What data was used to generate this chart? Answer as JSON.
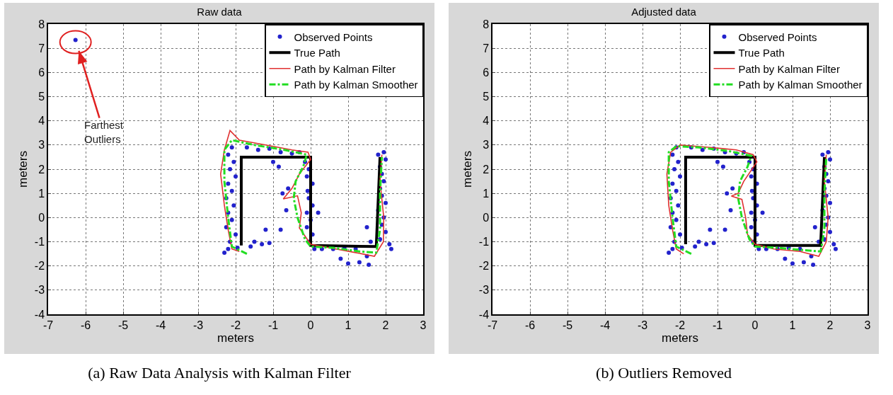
{
  "chart_data": [
    {
      "type": "scatter",
      "title": "Raw data",
      "xlabel": "meters",
      "ylabel": "meters",
      "xlim": [
        -7,
        3
      ],
      "ylim": [
        -4,
        8
      ],
      "xticks": [
        -7,
        -6,
        -5,
        -4,
        -3,
        -2,
        -1,
        0,
        1,
        2,
        3
      ],
      "yticks": [
        -4,
        -3,
        -2,
        -1,
        0,
        1,
        2,
        3,
        4,
        5,
        6,
        7,
        8
      ],
      "grid": true,
      "legend": "top right",
      "annotations": [
        {
          "text": "Farthest Outliers",
          "x": -6.27,
          "y": 7.34
        },
        "(a) Raw Data Analysis with Kalman Filter"
      ],
      "series": [
        {
          "name": "Observed Points",
          "type": "scatter",
          "marker": "circle",
          "color": "#2222cc",
          "x": [
            -6.27,
            -2.1,
            -2.2,
            -2.05,
            -2.15,
            -2.0,
            -2.2,
            -2.1,
            -2.25,
            -2.05,
            -2.2,
            -2.1,
            -2.25,
            -2.0,
            -2.15,
            -2.2,
            -1.95,
            -2.3,
            -1.7,
            -1.4,
            -1.1,
            -0.8,
            -0.5,
            -0.3,
            -1.0,
            -0.85,
            -0.6,
            -0.75,
            -0.65,
            -1.2,
            -1.5,
            -1.3,
            -1.6,
            -1.1,
            -0.8,
            -0.15,
            -0.05,
            -0.1,
            0.05,
            -0.08,
            -0.05,
            0.05,
            -0.1,
            0.0,
            -0.1,
            0.05,
            -0.05,
            0.1,
            0.3,
            0.2,
            0.6,
            0.9,
            1.2,
            0.8,
            1.0,
            1.3,
            1.5,
            1.55,
            1.8,
            1.95,
            2.0,
            1.85,
            1.9,
            1.95,
            1.85,
            1.9,
            2.0,
            1.8,
            1.95,
            1.9,
            2.0,
            1.85,
            1.5,
            2.1,
            2.15,
            1.6
          ],
          "values": [
            7.34,
            2.9,
            2.6,
            2.3,
            2.0,
            1.7,
            1.4,
            1.1,
            0.8,
            0.5,
            0.2,
            -0.1,
            -0.4,
            -0.7,
            -1.0,
            -1.3,
            -1.25,
            -1.45,
            2.9,
            2.8,
            2.85,
            2.7,
            2.65,
            2.7,
            2.3,
            2.1,
            1.2,
            1.0,
            0.3,
            -0.5,
            -1.0,
            -1.1,
            -1.2,
            -1.05,
            -0.5,
            2.3,
            2.0,
            1.7,
            1.4,
            1.1,
            0.8,
            0.5,
            0.2,
            -0.1,
            -0.4,
            -0.7,
            -1.0,
            -1.3,
            -1.3,
            0.2,
            -1.3,
            -1.25,
            -1.3,
            -1.7,
            -1.9,
            -1.85,
            -1.6,
            -1.95,
            2.6,
            2.7,
            2.4,
            2.1,
            1.8,
            1.5,
            1.2,
            0.9,
            0.6,
            0.3,
            0.0,
            -0.3,
            -0.6,
            -0.9,
            -0.4,
            -1.1,
            -1.3,
            -1.0
          ]
        },
        {
          "name": "True Path",
          "type": "line",
          "line_style": "solid",
          "color": "#000000",
          "x": [
            -1.85,
            -1.85,
            0,
            0,
            1.75,
            1.85
          ],
          "values": [
            -1.15,
            2.5,
            2.5,
            -1.15,
            -1.2,
            2.5
          ]
        },
        {
          "name": "Path by Kalman Filter",
          "type": "line",
          "line_style": "solid",
          "color": "#e03030",
          "x": [
            -1.9,
            -2.1,
            -2.2,
            -2.3,
            -2.4,
            -2.3,
            -2.15,
            -1.9,
            -1.2,
            -0.5,
            -0.07,
            0.0,
            -0.3,
            -0.5,
            -0.73,
            -0.35,
            -0.25,
            -0.3,
            0.0,
            0.5,
            1.2,
            1.7,
            1.94,
            1.95,
            1.85,
            1.9
          ],
          "values": [
            -1.4,
            -1.3,
            -0.5,
            0.5,
            1.8,
            2.8,
            3.6,
            3.2,
            3.0,
            2.8,
            2.7,
            2.4,
            1.8,
            1.2,
            0.77,
            0.9,
            0.2,
            -0.43,
            -1.1,
            -1.25,
            -1.45,
            -1.6,
            -1.0,
            0.0,
            1.5,
            2.6
          ]
        },
        {
          "name": "Path by Kalman Smoother",
          "type": "line",
          "line_style": "dashed",
          "color": "#22dd22",
          "x": [
            -1.7,
            -2.1,
            -2.2,
            -2.3,
            -2.3,
            -2.1,
            -1.5,
            -0.7,
            -0.1,
            -0.2,
            -0.4,
            -0.45,
            -0.35,
            -0.15,
            0.0,
            0.6,
            1.3,
            1.75,
            1.85,
            1.85,
            1.9
          ],
          "values": [
            -1.5,
            -1.2,
            0,
            1.5,
            2.8,
            3.2,
            3.0,
            2.8,
            2.6,
            2.1,
            1.5,
            0.8,
            0.0,
            -0.9,
            -1.2,
            -1.25,
            -1.4,
            -1.45,
            -0.5,
            1.0,
            2.5
          ]
        }
      ]
    },
    {
      "type": "scatter",
      "title": "Adjusted data",
      "xlabel": "meters",
      "ylabel": "meters",
      "xlim": [
        -7,
        3
      ],
      "ylim": [
        -4,
        8
      ],
      "xticks": [
        -7,
        -6,
        -5,
        -4,
        -3,
        -2,
        -1,
        0,
        1,
        2,
        3
      ],
      "yticks": [
        -4,
        -3,
        -2,
        -1,
        0,
        1,
        2,
        3,
        4,
        5,
        6,
        7,
        8
      ],
      "grid": true,
      "legend": "top right",
      "annotations": [
        "(b) Outliers Removed"
      ],
      "series": [
        {
          "name": "Observed Points",
          "type": "scatter",
          "marker": "circle",
          "color": "#2222cc",
          "x": [
            -2.1,
            -2.2,
            -2.05,
            -2.15,
            -2.0,
            -2.2,
            -2.1,
            -2.25,
            -2.05,
            -2.2,
            -2.1,
            -2.25,
            -2.0,
            -2.15,
            -2.2,
            -1.95,
            -2.3,
            -1.7,
            -1.4,
            -1.1,
            -0.8,
            -0.5,
            -0.3,
            -1.0,
            -0.85,
            -0.6,
            -0.75,
            -0.65,
            -1.2,
            -1.5,
            -1.3,
            -1.6,
            -1.1,
            -0.8,
            -0.15,
            -0.05,
            -0.1,
            0.05,
            -0.08,
            -0.05,
            0.05,
            -0.1,
            0.0,
            -0.1,
            0.05,
            -0.05,
            0.1,
            0.3,
            0.2,
            0.6,
            0.9,
            1.2,
            0.8,
            1.0,
            1.3,
            1.5,
            1.55,
            1.8,
            1.95,
            2.0,
            1.85,
            1.9,
            1.95,
            1.85,
            1.9,
            2.0,
            1.8,
            1.95,
            1.9,
            2.0,
            1.85,
            1.6,
            2.1,
            2.15,
            1.7
          ],
          "values": [
            2.9,
            2.6,
            2.3,
            2.0,
            1.7,
            1.4,
            1.1,
            0.8,
            0.5,
            0.2,
            -0.1,
            -0.4,
            -0.7,
            -1.0,
            -1.3,
            -1.25,
            -1.45,
            2.9,
            2.8,
            2.85,
            2.7,
            2.65,
            2.7,
            2.3,
            2.1,
            1.2,
            1.0,
            0.3,
            -0.5,
            -1.0,
            -1.1,
            -1.2,
            -1.05,
            -0.5,
            2.3,
            2.0,
            1.7,
            1.4,
            1.1,
            0.8,
            0.5,
            0.2,
            -0.1,
            -0.4,
            -0.7,
            -1.0,
            -1.3,
            -1.3,
            0.2,
            -1.3,
            -1.25,
            -1.3,
            -1.7,
            -1.9,
            -1.85,
            -1.6,
            -1.95,
            2.6,
            2.7,
            2.4,
            2.1,
            1.8,
            1.5,
            1.2,
            0.9,
            0.6,
            0.3,
            0.0,
            -0.3,
            -0.6,
            -0.9,
            -0.4,
            -1.1,
            -1.3,
            -1.0
          ]
        },
        {
          "name": "True Path",
          "type": "line",
          "line_style": "solid",
          "color": "#000000",
          "x": [
            -1.85,
            -1.85,
            0,
            0,
            1.75,
            1.85
          ],
          "values": [
            -1.1,
            2.5,
            2.5,
            -1.15,
            -1.15,
            2.5
          ]
        },
        {
          "name": "Path by Kalman Filter",
          "type": "line",
          "line_style": "solid",
          "color": "#e03030",
          "x": [
            -1.9,
            -2.1,
            -2.2,
            -2.3,
            -2.35,
            -2.25,
            -2.0,
            -1.2,
            -0.5,
            -0.05,
            0.05,
            -0.3,
            -0.45,
            -0.63,
            -0.35,
            -0.25,
            -0.2,
            0.0,
            0.5,
            1.2,
            1.7,
            1.9,
            1.95,
            1.85,
            1.9
          ],
          "values": [
            -1.5,
            -1.3,
            -0.5,
            0.5,
            1.8,
            2.7,
            3.0,
            2.9,
            2.8,
            2.6,
            2.3,
            1.5,
            1.0,
            0.89,
            0.75,
            0.0,
            -0.7,
            -1.1,
            -1.3,
            -1.4,
            -1.6,
            -1.0,
            0.0,
            1.5,
            2.6
          ]
        },
        {
          "name": "Path by Kalman Smoother",
          "type": "line",
          "line_style": "dashed",
          "color": "#22dd22",
          "x": [
            -1.7,
            -2.1,
            -2.2,
            -2.3,
            -2.3,
            -2.1,
            -1.5,
            -0.7,
            -0.1,
            -0.2,
            -0.4,
            -0.45,
            -0.35,
            -0.15,
            0.0,
            0.6,
            1.3,
            1.75,
            1.85,
            1.85,
            1.9
          ],
          "values": [
            -1.5,
            -1.2,
            0,
            1.5,
            2.7,
            2.95,
            2.9,
            2.75,
            2.55,
            2.1,
            1.5,
            0.8,
            0.0,
            -0.9,
            -1.2,
            -1.25,
            -1.35,
            -1.4,
            -0.5,
            1.0,
            2.5
          ]
        }
      ]
    }
  ]
}
